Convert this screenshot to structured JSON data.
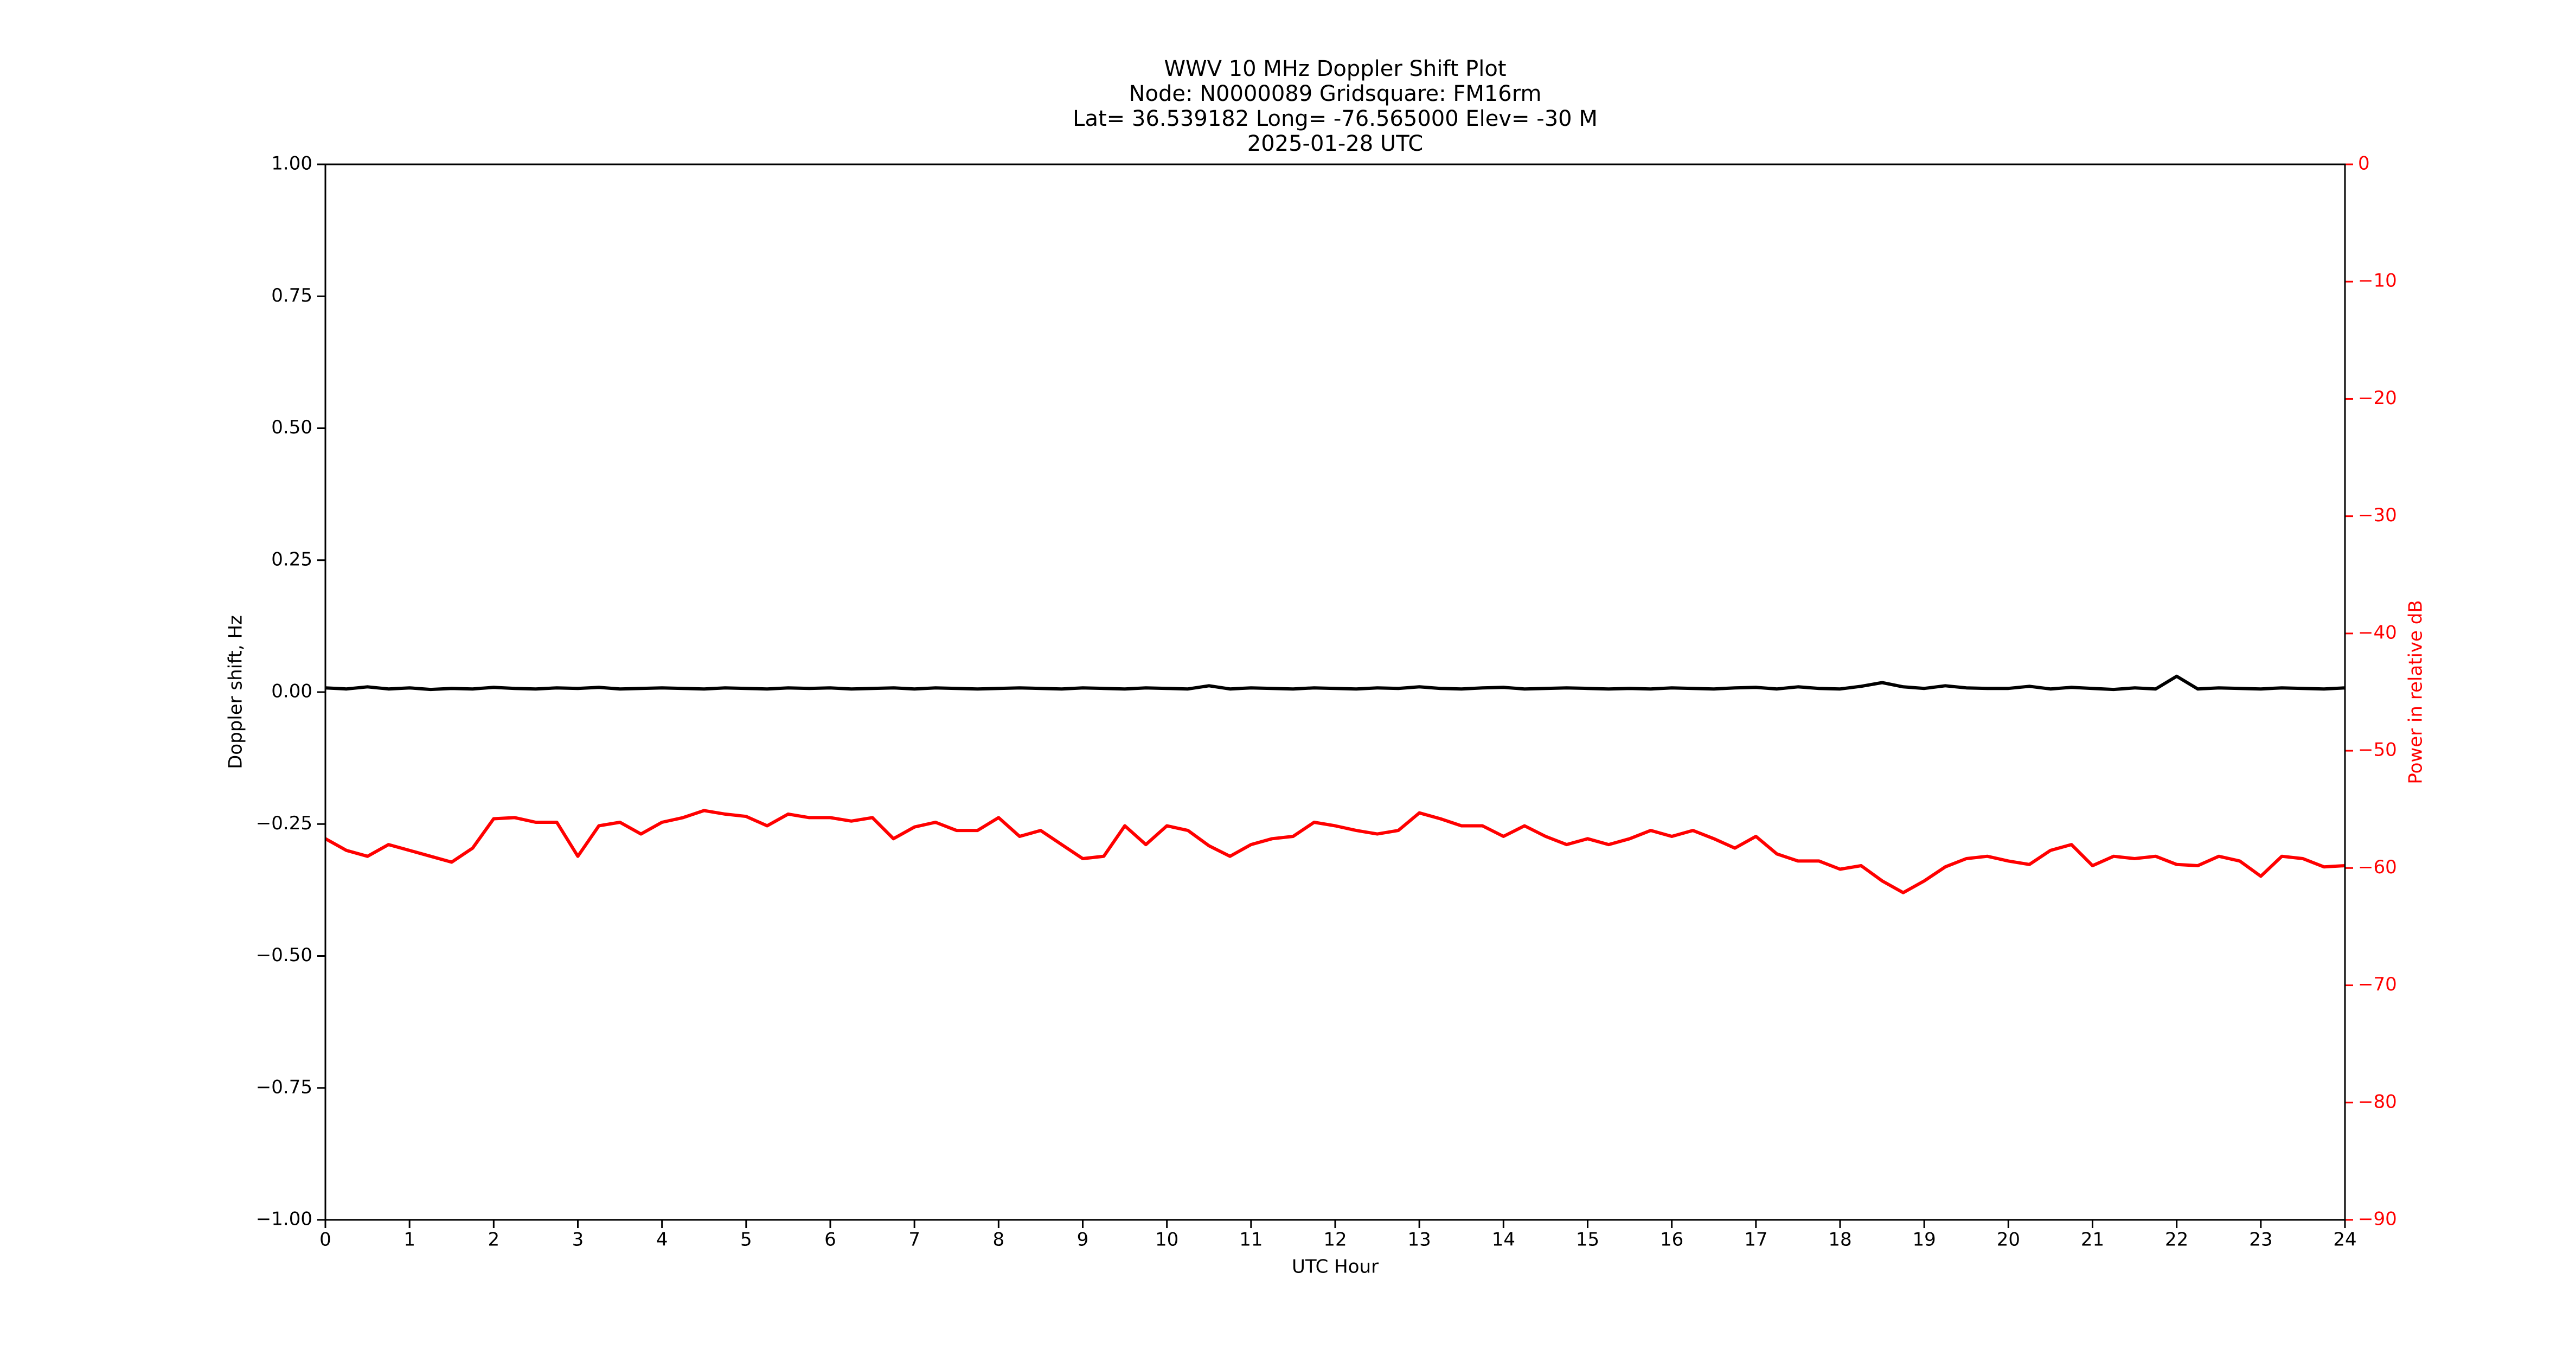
{
  "chart_data": {
    "type": "line",
    "title": [
      "WWV 10 MHz Doppler Shift Plot",
      "Node:  N0000089     Gridsquare:  FM16rm",
      "Lat= 36.539182    Long= -76.565000    Elev= -30 M",
      "2025-01-28  UTC"
    ],
    "xlabel": "UTC Hour",
    "ylabel": "Doppler shift, Hz",
    "y2label": "Power in relative dB",
    "x": [
      0,
      0.25,
      0.5,
      0.75,
      1,
      1.25,
      1.5,
      1.75,
      2,
      2.25,
      2.5,
      2.75,
      3,
      3.25,
      3.5,
      3.75,
      4,
      4.25,
      4.5,
      4.75,
      5,
      5.25,
      5.5,
      5.75,
      6,
      6.25,
      6.5,
      6.75,
      7,
      7.25,
      7.5,
      7.75,
      8,
      8.25,
      8.5,
      8.75,
      9,
      9.25,
      9.5,
      9.75,
      10,
      10.25,
      10.5,
      10.75,
      11,
      11.25,
      11.5,
      11.75,
      12,
      12.25,
      12.5,
      12.75,
      13,
      13.25,
      13.5,
      13.75,
      14,
      14.25,
      14.5,
      14.75,
      15,
      15.25,
      15.5,
      15.75,
      16,
      16.25,
      16.5,
      16.75,
      17,
      17.25,
      17.5,
      17.75,
      18,
      18.25,
      18.5,
      18.75,
      19,
      19.25,
      19.5,
      19.75,
      20,
      20.25,
      20.5,
      20.75,
      21,
      21.25,
      21.5,
      21.75,
      22,
      22.25,
      22.5,
      22.75,
      23,
      23.25,
      23.5,
      23.75,
      24
    ],
    "series": [
      {
        "name": "Doppler shift",
        "color": "#000000",
        "values": [
          0.008,
          0.006,
          0.01,
          0.006,
          0.008,
          0.005,
          0.007,
          0.006,
          0.009,
          0.007,
          0.006,
          0.008,
          0.007,
          0.009,
          0.006,
          0.007,
          0.008,
          0.007,
          0.006,
          0.008,
          0.007,
          0.006,
          0.008,
          0.007,
          0.008,
          0.006,
          0.007,
          0.008,
          0.006,
          0.008,
          0.007,
          0.006,
          0.007,
          0.008,
          0.007,
          0.006,
          0.008,
          0.007,
          0.006,
          0.008,
          0.007,
          0.006,
          0.012,
          0.006,
          0.008,
          0.007,
          0.006,
          0.008,
          0.007,
          0.006,
          0.008,
          0.007,
          0.01,
          0.007,
          0.006,
          0.008,
          0.009,
          0.006,
          0.007,
          0.008,
          0.007,
          0.006,
          0.007,
          0.006,
          0.008,
          0.007,
          0.006,
          0.008,
          0.009,
          0.006,
          0.01,
          0.007,
          0.006,
          0.011,
          0.018,
          0.01,
          0.007,
          0.012,
          0.008,
          0.007,
          0.007,
          0.011,
          0.006,
          0.009,
          0.007,
          0.005,
          0.008,
          0.006,
          0.03,
          0.006,
          0.008,
          0.007,
          0.006,
          0.008,
          0.007,
          0.006,
          0.008
        ]
      },
      {
        "name": "Power",
        "color": "#ff0000",
        "axis": "y2",
        "values": [
          -57.5,
          -58.5,
          -59,
          -58,
          -58.5,
          -59,
          -59.5,
          -58.3,
          -55.8,
          -55.7,
          -56.1,
          -56.1,
          -59,
          -56.4,
          -56.1,
          -57.1,
          -56.1,
          -55.7,
          -55.1,
          -55.4,
          -55.6,
          -56.4,
          -55.4,
          -55.7,
          -55.7,
          -56,
          -55.7,
          -57.5,
          -56.5,
          -56.1,
          -56.8,
          -56.8,
          -55.7,
          -57.3,
          -56.8,
          -58,
          -59.2,
          -59,
          -56.4,
          -58,
          -56.4,
          -56.8,
          -58.1,
          -59,
          -58,
          -57.5,
          -57.3,
          -56.1,
          -56.4,
          -56.8,
          -57.1,
          -56.8,
          -55.3,
          -55.8,
          -56.4,
          -56.4,
          -57.3,
          -56.4,
          -57.3,
          -58,
          -57.5,
          -58,
          -57.5,
          -56.8,
          -57.3,
          -56.8,
          -57.5,
          -58.3,
          -57.3,
          -58.8,
          -59.4,
          -59.4,
          -60.1,
          -59.8,
          -61.1,
          -62.1,
          -61.1,
          -59.9,
          -59.2,
          -59,
          -59.4,
          -59.7,
          -58.5,
          -58,
          -59.8,
          -59,
          -59.2,
          -59,
          -59.7,
          -59.8,
          -59,
          -59.4,
          -60.7,
          -59,
          -59.2,
          -59.9,
          -59.8
        ]
      }
    ],
    "xlim": [
      0,
      24
    ],
    "xticks": [
      0,
      1,
      2,
      3,
      4,
      5,
      6,
      7,
      8,
      9,
      10,
      11,
      12,
      13,
      14,
      15,
      16,
      17,
      18,
      19,
      20,
      21,
      22,
      23,
      24
    ],
    "ylim": [
      -1,
      1
    ],
    "yticks": [
      {
        "value": -1,
        "label": "−1.00"
      },
      {
        "value": -0.75,
        "label": "−0.75"
      },
      {
        "value": -0.5,
        "label": "−0.50"
      },
      {
        "value": -0.25,
        "label": "−0.25"
      },
      {
        "value": 0,
        "label": "0.00"
      },
      {
        "value": 0.25,
        "label": "0.25"
      },
      {
        "value": 0.5,
        "label": "0.50"
      },
      {
        "value": 0.75,
        "label": "0.75"
      },
      {
        "value": 1,
        "label": "1.00"
      }
    ],
    "y2lim": [
      -90,
      0
    ],
    "y2ticks": [
      {
        "value": -90,
        "label": "−90"
      },
      {
        "value": -80,
        "label": "−80"
      },
      {
        "value": -70,
        "label": "−70"
      },
      {
        "value": -60,
        "label": "−60"
      },
      {
        "value": -50,
        "label": "−50"
      },
      {
        "value": -40,
        "label": "−40"
      },
      {
        "value": -30,
        "label": "−30"
      },
      {
        "value": -20,
        "label": "−20"
      },
      {
        "value": -10,
        "label": "−10"
      },
      0
    ],
    "y2color": "#ff0000"
  }
}
